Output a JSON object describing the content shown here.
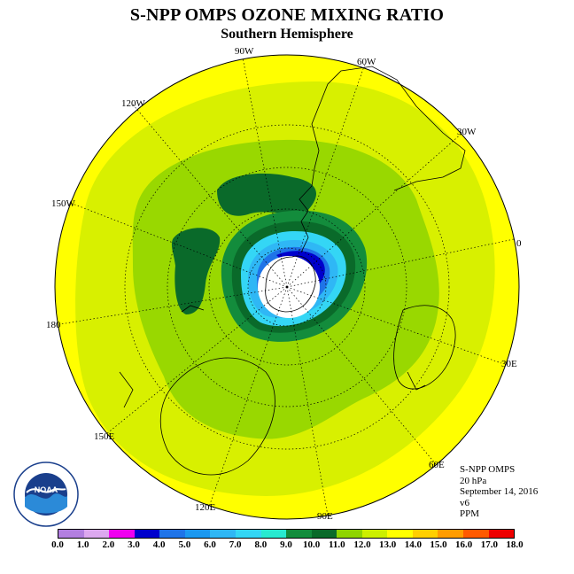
{
  "title": "S-NPP OMPS OZONE MIXING RATIO",
  "subtitle": "Southern Hemisphere",
  "longitude_labels": [
    "90W",
    "60W",
    "30W",
    "0",
    "30E",
    "60E",
    "90E",
    "120E",
    "150E",
    "180",
    "150W",
    "120W"
  ],
  "info": {
    "instrument": "S-NPP OMPS",
    "level": "20 hPa",
    "date": "September 14, 2016",
    "version": "v6",
    "units": "PPM"
  },
  "logo_text": "NOAA",
  "colorbar": {
    "ticks": [
      "0.0",
      "1.0",
      "2.0",
      "3.0",
      "4.0",
      "5.0",
      "6.0",
      "7.0",
      "8.0",
      "9.0",
      "10.0",
      "11.0",
      "12.0",
      "13.0",
      "14.0",
      "15.0",
      "16.0",
      "17.0",
      "18.0"
    ],
    "colors": [
      "#b27fe0",
      "#dca8ef",
      "#f000f0",
      "#0000cc",
      "#1f74e8",
      "#1c98f0",
      "#2fb7f5",
      "#34d6f5",
      "#28ead0",
      "#138c3c",
      "#0a6a2a",
      "#8fd400",
      "#ccf000",
      "#ffff00",
      "#ffcf00",
      "#ff9c00",
      "#ff5a00",
      "#ee0000",
      "#8b5a3c"
    ]
  },
  "map_colors": {
    "ocean_outer": "#ffff00",
    "band_yellow_green": "#d8f000",
    "band_green": "#99d800",
    "band_mid_green": "#138c3c",
    "band_dark_green": "#0a6a2a",
    "vortex_cyan": "#34d6f5",
    "vortex_light_blue": "#2fb7f5",
    "vortex_blue": "#1f74e8",
    "vortex_deep": "#0000cc",
    "no_data": "#ffffff"
  }
}
